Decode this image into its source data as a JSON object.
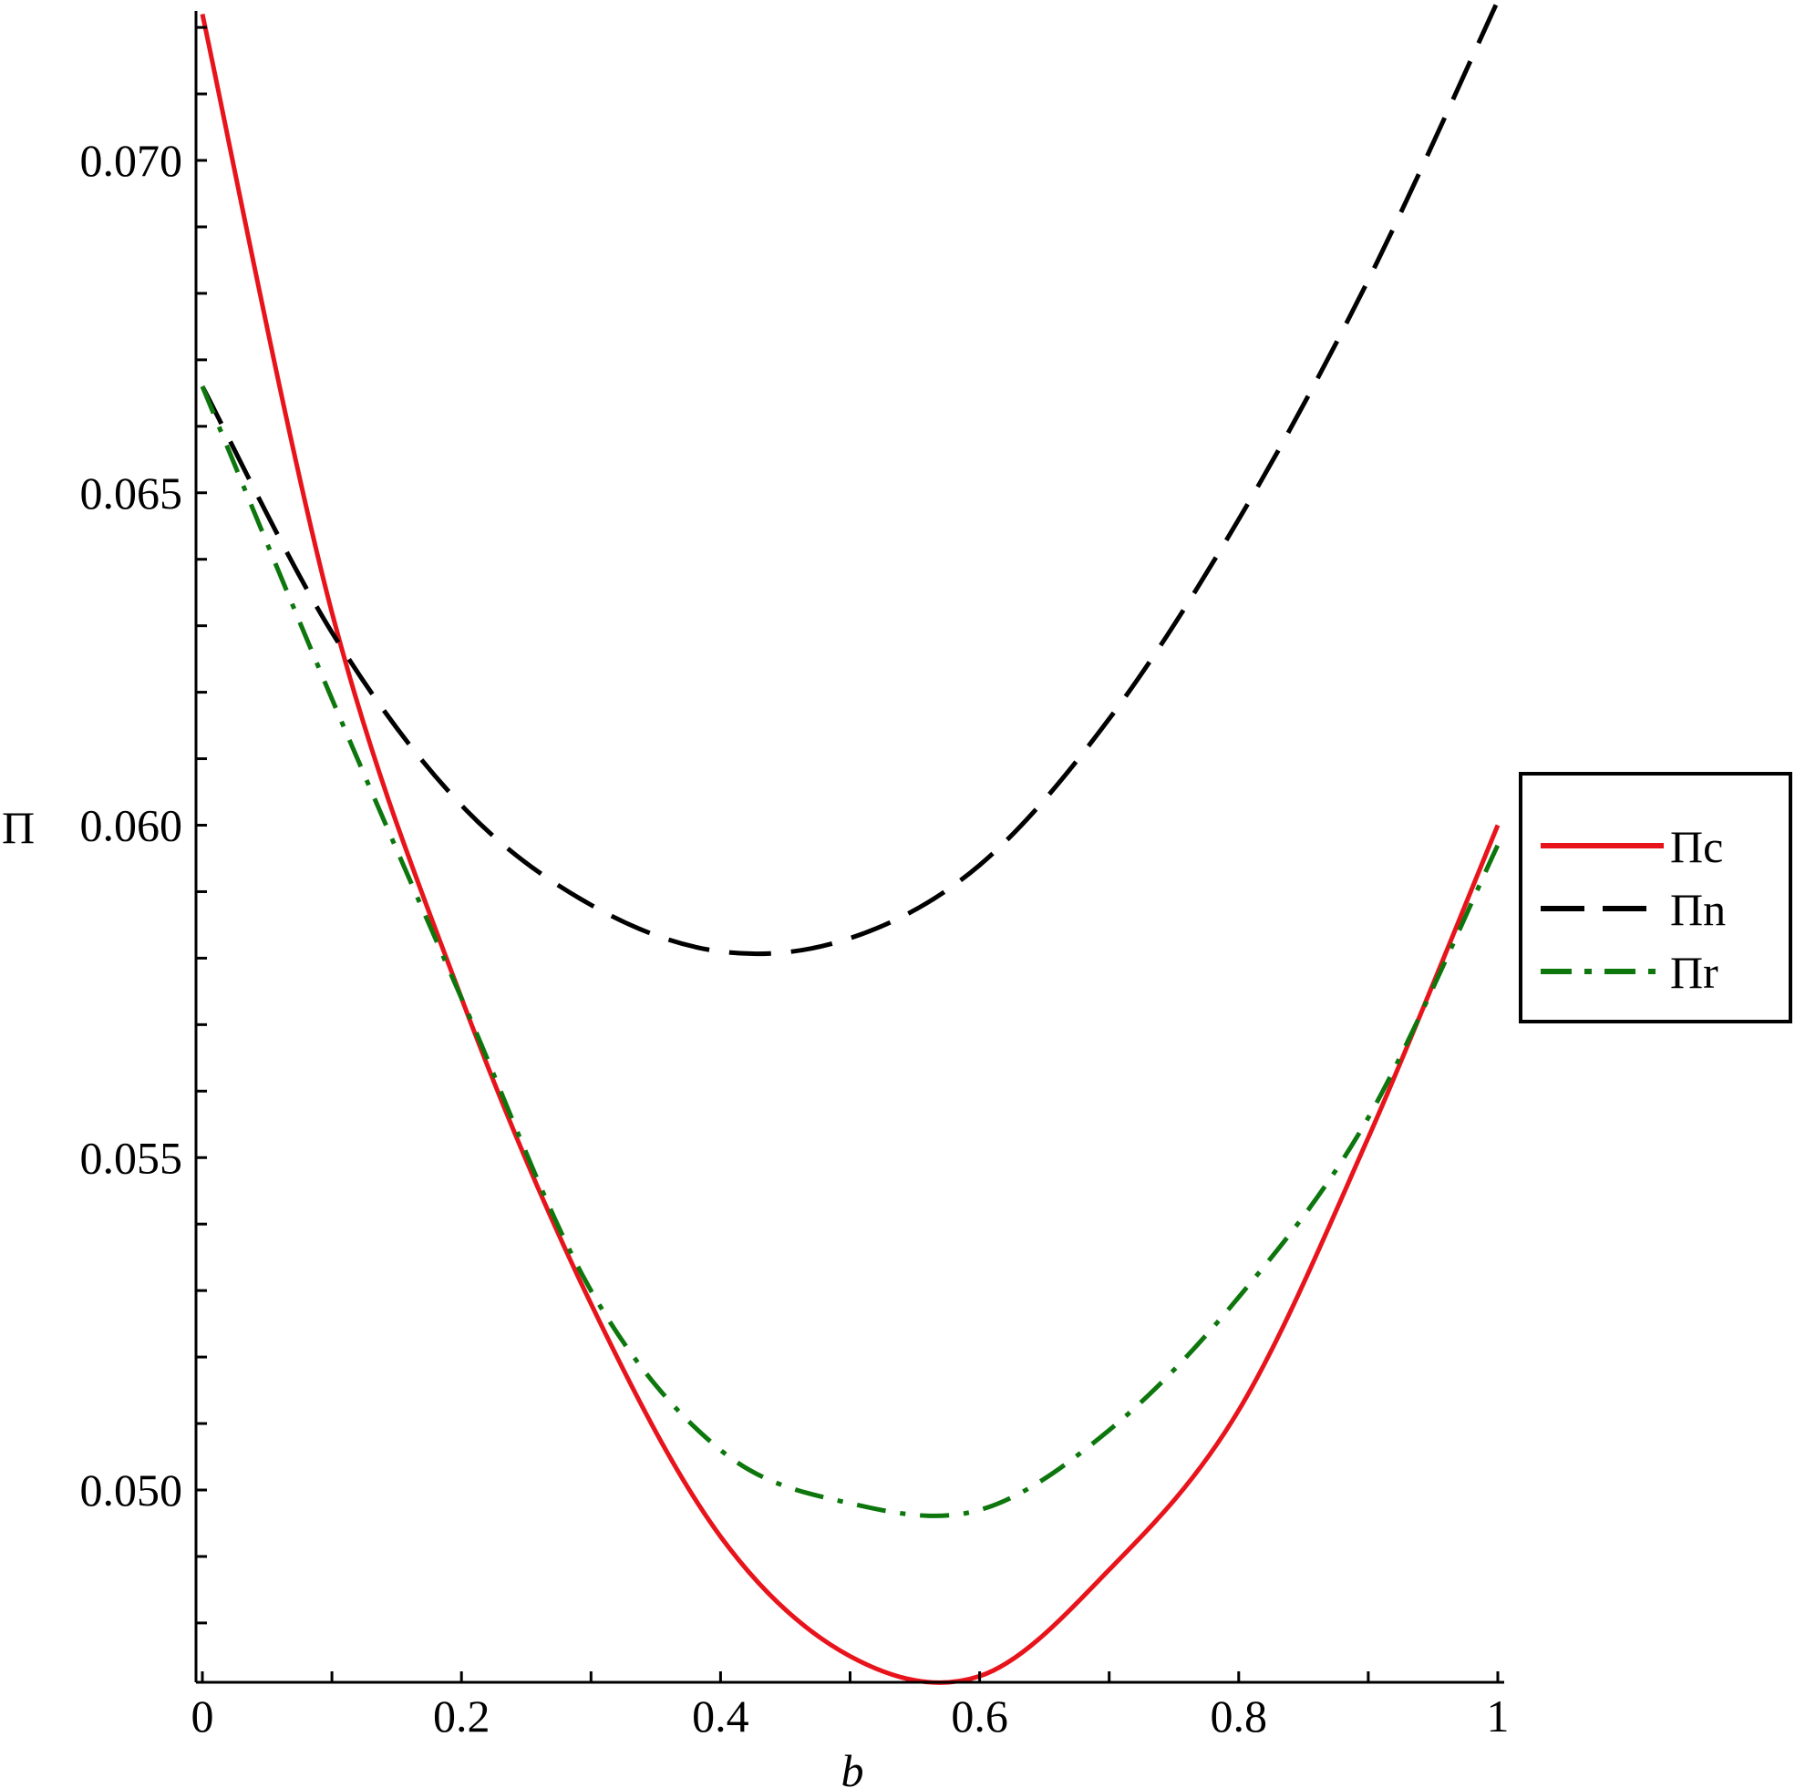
{
  "chart_data": {
    "type": "line",
    "title": "",
    "xlabel": "b",
    "ylabel": "Π",
    "xlim": [
      0,
      1
    ],
    "ylim": [
      0.047,
      0.0723
    ],
    "x_ticks": [
      0,
      0.1,
      0.2,
      0.3,
      0.4,
      0.5,
      0.6,
      0.7,
      0.8,
      0.9,
      1
    ],
    "x_tick_labels": [
      "0",
      "",
      "0.2",
      "",
      "0.4",
      "",
      "0.6",
      "",
      "0.8",
      "",
      "1"
    ],
    "y_ticks": [
      0.048,
      0.049,
      0.05,
      0.051,
      0.052,
      0.053,
      0.054,
      0.055,
      0.056,
      0.057,
      0.058,
      0.059,
      0.06,
      0.061,
      0.062,
      0.063,
      0.064,
      0.065,
      0.066,
      0.067,
      0.068,
      0.069,
      0.07,
      0.071,
      0.072
    ],
    "y_tick_labels": [
      "",
      "",
      "0.050",
      "",
      "",
      "",
      "",
      "0.055",
      "",
      "",
      "",
      "",
      "0.060",
      "",
      "",
      "",
      "",
      "0.065",
      "",
      "",
      "",
      "",
      "0.070",
      "",
      ""
    ],
    "grid": false,
    "legend_position": "right",
    "x": [
      0,
      0.1,
      0.2,
      0.3,
      0.4,
      0.5,
      0.6,
      0.7,
      0.8,
      0.9,
      1
    ],
    "series": [
      {
        "name": "Πc",
        "color": "#e8141c",
        "style": "solid",
        "values": [
          0.0722,
          0.0632,
          0.0574,
          0.0528,
          0.0493,
          0.0475,
          0.0472,
          0.0488,
          0.0512,
          0.0553,
          0.06
        ]
      },
      {
        "name": "Πn",
        "color": "#000000",
        "style": "dashed",
        "values": [
          0.0666,
          0.0629,
          0.0603,
          0.0588,
          0.0581,
          0.0583,
          0.0594,
          0.0616,
          0.0646,
          0.0682,
          0.0724
        ]
      },
      {
        "name": "Πr",
        "color": "#0d770d",
        "style": "dashdot",
        "values": [
          0.0666,
          0.0619,
          0.0574,
          0.053,
          0.0506,
          0.0498,
          0.0497,
          0.0509,
          0.0529,
          0.0556,
          0.0597
        ]
      }
    ]
  }
}
